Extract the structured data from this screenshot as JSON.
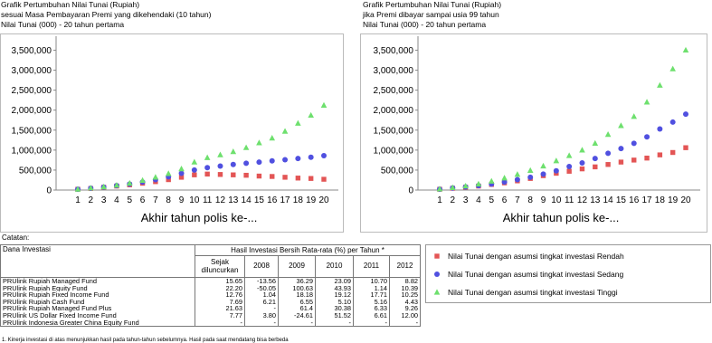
{
  "chart_data": [
    {
      "type": "scatter",
      "title": "Grafik Pertumbuhan Nilai Tunai (Rupiah)",
      "subtitles": [
        "sesuai Masa Pembayaran Premi yang dikehendaki (10 tahun)",
        "Nilai Tunai (000) - 20 tahun pertama"
      ],
      "x_label": "Akhir tahun polis ke-...",
      "categories": [
        "1",
        "2",
        "3",
        "4",
        "5",
        "6",
        "7",
        "8",
        "9",
        "10",
        "11",
        "12",
        "13",
        "14",
        "15",
        "16",
        "17",
        "18",
        "19",
        "20"
      ],
      "ylim": [
        0,
        3850000
      ],
      "yticks": [
        0,
        {
          "value": 500000,
          "label": "500,000"
        },
        {
          "value": 1000000,
          "label": "1,000,000"
        },
        {
          "value": 1500000,
          "label": "1,500,000"
        },
        {
          "value": 2000000,
          "label": "2,000,000"
        },
        {
          "value": 2500000,
          "label": "2,500,000"
        },
        {
          "value": 3000000,
          "label": "3,000,000"
        },
        {
          "value": 3500000,
          "label": "3,500,000"
        }
      ],
      "series": [
        {
          "name": "Nilai Tunai dengan asumsi tingkat investasi Rendah",
          "color": "#e35555",
          "marker": "square",
          "values": [
            20000,
            40000,
            70000,
            100000,
            130000,
            170000,
            210000,
            260000,
            320000,
            380000,
            400000,
            390000,
            380000,
            370000,
            350000,
            340000,
            320000,
            300000,
            290000,
            270000
          ]
        },
        {
          "name": "Nilai Tunai dengan asumsi tingkat investasi Sedang",
          "color": "#5050e0",
          "marker": "circle",
          "values": [
            20000,
            45000,
            75000,
            110000,
            150000,
            200000,
            260000,
            330000,
            420000,
            500000,
            560000,
            600000,
            640000,
            670000,
            700000,
            730000,
            760000,
            790000,
            820000,
            860000
          ]
        },
        {
          "name": "Nilai Tunai dengan asumsi tingkat investasi Tinggi",
          "color": "#6ee06e",
          "marker": "triangle",
          "values": [
            20000,
            50000,
            80000,
            120000,
            170000,
            240000,
            320000,
            410000,
            530000,
            700000,
            810000,
            880000,
            960000,
            1060000,
            1180000,
            1300000,
            1470000,
            1670000,
            1870000,
            2120000
          ]
        }
      ]
    },
    {
      "type": "scatter",
      "title": "Grafik Pertumbuhan Nilai Tunai (Rupiah)",
      "subtitles": [
        "jika Premi dibayar sampai usia 99 tahun",
        "Nilai Tunai (000) - 20 tahun pertama"
      ],
      "x_label": "Akhir tahun polis ke-...",
      "categories": [
        "1",
        "2",
        "3",
        "4",
        "5",
        "6",
        "7",
        "8",
        "9",
        "10",
        "11",
        "12",
        "13",
        "14",
        "15",
        "16",
        "17",
        "18",
        "19",
        "20"
      ],
      "ylim": [
        0,
        3850000
      ],
      "yticks": [
        0,
        {
          "value": 500000,
          "label": "500,000"
        },
        {
          "value": 1000000,
          "label": "1,000,000"
        },
        {
          "value": 1500000,
          "label": "1,500,000"
        },
        {
          "value": 2000000,
          "label": "2,000,000"
        },
        {
          "value": 2500000,
          "label": "2,500,000"
        },
        {
          "value": 3000000,
          "label": "3,000,000"
        },
        {
          "value": 3500000,
          "label": "3,500,000"
        }
      ],
      "series": [
        {
          "color": "#e35555",
          "marker": "square",
          "values": [
            20000,
            45000,
            70000,
            100000,
            140000,
            180000,
            230000,
            290000,
            360000,
            420000,
            470000,
            530000,
            580000,
            640000,
            700000,
            750000,
            800000,
            880000,
            940000,
            1060000
          ]
        },
        {
          "color": "#5050e0",
          "marker": "circle",
          "values": [
            20000,
            50000,
            80000,
            110000,
            150000,
            200000,
            260000,
            320000,
            400000,
            480000,
            590000,
            680000,
            790000,
            920000,
            1040000,
            1170000,
            1330000,
            1530000,
            1700000,
            1900000
          ]
        },
        {
          "color": "#6ee06e",
          "marker": "triangle",
          "values": [
            25000,
            60000,
            100000,
            150000,
            220000,
            300000,
            390000,
            490000,
            600000,
            730000,
            860000,
            1000000,
            1170000,
            1390000,
            1610000,
            1840000,
            2200000,
            2620000,
            3030000,
            3500000
          ]
        }
      ]
    }
  ],
  "table": {
    "note": "Catatan:",
    "header": [
      "Dana Investasi",
      "Hasil Investasi Bersih Rata-rata (%) per Tahun *"
    ],
    "subheader": [
      "Sejak diluncurkan",
      "2008",
      "2009",
      "2010",
      "2011",
      "2012"
    ],
    "rows": [
      [
        "PRUlink Rupiah Managed Fund",
        "15.65",
        "-13.56",
        "36.29",
        "23.09",
        "10.70",
        "8.82"
      ],
      [
        "PRUlink Rupiah Equity Fund",
        "22.20",
        "-50.05",
        "100.63",
        "43.93",
        "1.14",
        "10.39"
      ],
      [
        "PRUlink Rupiah Fixed Income Fund",
        "12.76",
        "1.04",
        "18.18",
        "19.12",
        "17.71",
        "10.25"
      ],
      [
        "PRUlink Rupiah Cash Fund",
        "7.69",
        "6.21",
        "6.55",
        "5.10",
        "5.16",
        "4.43"
      ],
      [
        "PRUlink Rupiah Managed Fund Plus",
        "21.63",
        "-",
        "61.4",
        "30.38",
        "6.33",
        "9.26"
      ],
      [
        "PRUlink US Dollar Fixed Income Fund",
        "7.77",
        "3.80",
        "-24.61",
        "51.52",
        "6.61",
        "12.00"
      ],
      [
        "PRUlink Indonesia Greater China Equity Fund",
        "-",
        "-",
        "-",
        "-",
        "-",
        "-"
      ]
    ],
    "footnote": "1. Kinerja investasi di atas menunjukkan hasil pada tahun-tahun sebelumnya. Hasil pada saat mendatang bisa berbeda"
  }
}
